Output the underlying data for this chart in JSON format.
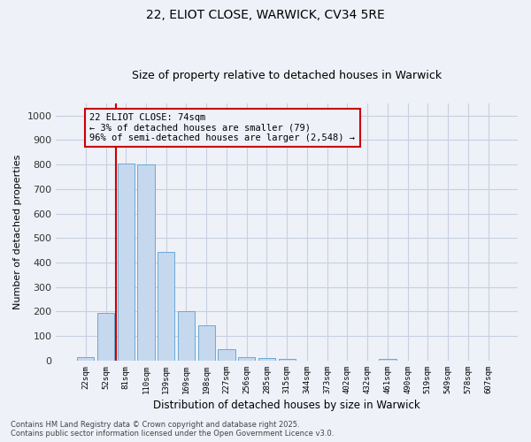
{
  "title": "22, ELIOT CLOSE, WARWICK, CV34 5RE",
  "subtitle": "Size of property relative to detached houses in Warwick",
  "xlabel": "Distribution of detached houses by size in Warwick",
  "ylabel": "Number of detached properties",
  "categories": [
    "22sqm",
    "52sqm",
    "81sqm",
    "110sqm",
    "139sqm",
    "169sqm",
    "198sqm",
    "227sqm",
    "256sqm",
    "285sqm",
    "315sqm",
    "344sqm",
    "373sqm",
    "402sqm",
    "432sqm",
    "461sqm",
    "490sqm",
    "519sqm",
    "549sqm",
    "578sqm",
    "607sqm"
  ],
  "values": [
    15,
    195,
    805,
    800,
    445,
    200,
    145,
    48,
    15,
    10,
    8,
    0,
    0,
    0,
    0,
    7,
    0,
    0,
    0,
    0,
    0
  ],
  "bar_color": "#c5d8ee",
  "bar_edge_color": "#6aaad4",
  "grid_color": "#c8cfe0",
  "bg_color": "#eef1f8",
  "vline_color": "#cc0000",
  "annotation_text": "22 ELIOT CLOSE: 74sqm\n← 3% of detached houses are smaller (79)\n96% of semi-detached houses are larger (2,548) →",
  "annotation_box_color": "#cc0000",
  "footer_line1": "Contains HM Land Registry data © Crown copyright and database right 2025.",
  "footer_line2": "Contains public sector information licensed under the Open Government Licence v3.0.",
  "ylim": [
    0,
    1050
  ],
  "yticks": [
    0,
    100,
    200,
    300,
    400,
    500,
    600,
    700,
    800,
    900,
    1000
  ]
}
